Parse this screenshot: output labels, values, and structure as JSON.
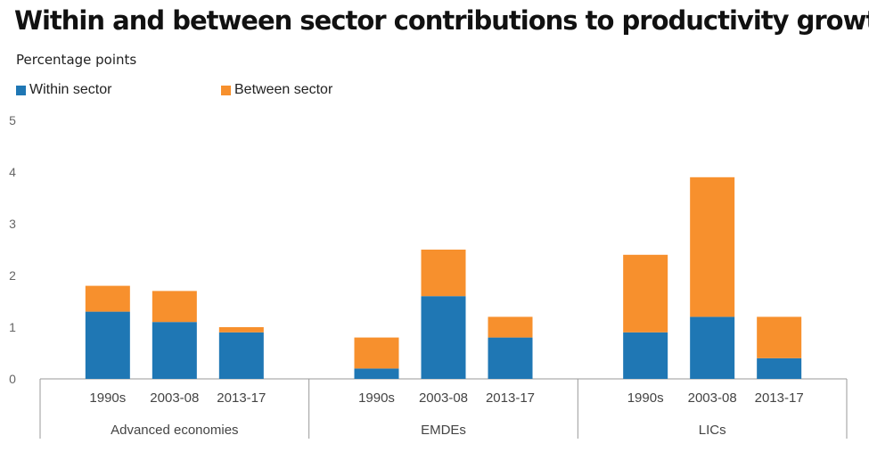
{
  "chart_data": {
    "type": "bar",
    "stacked": true,
    "title": "Within and between sector contributions to productivity growth",
    "ylabel": "Percentage points",
    "xlabel": "",
    "ylim": [
      0,
      5
    ],
    "yticks": [
      "0",
      "1",
      "2",
      "3",
      "4",
      "5"
    ],
    "grid": false,
    "legend_position": "top-left",
    "groups": [
      {
        "name": "Advanced economies",
        "categories": [
          "1990s",
          "2003-08",
          "2013-17"
        ]
      },
      {
        "name": "EMDEs",
        "categories": [
          "1990s",
          "2003-08",
          "2013-17"
        ]
      },
      {
        "name": "LICs",
        "categories": [
          "1990s",
          "2003-08",
          "2013-17"
        ]
      }
    ],
    "series": [
      {
        "name": "Within sector",
        "color": "#1f77b4",
        "values": [
          1.3,
          1.1,
          0.9,
          0.2,
          1.6,
          0.8,
          0.9,
          1.2,
          0.4
        ]
      },
      {
        "name": "Between sector",
        "color": "#f7902d",
        "values": [
          0.5,
          0.6,
          0.1,
          0.6,
          0.9,
          0.4,
          1.5,
          2.7,
          0.8
        ]
      }
    ]
  }
}
